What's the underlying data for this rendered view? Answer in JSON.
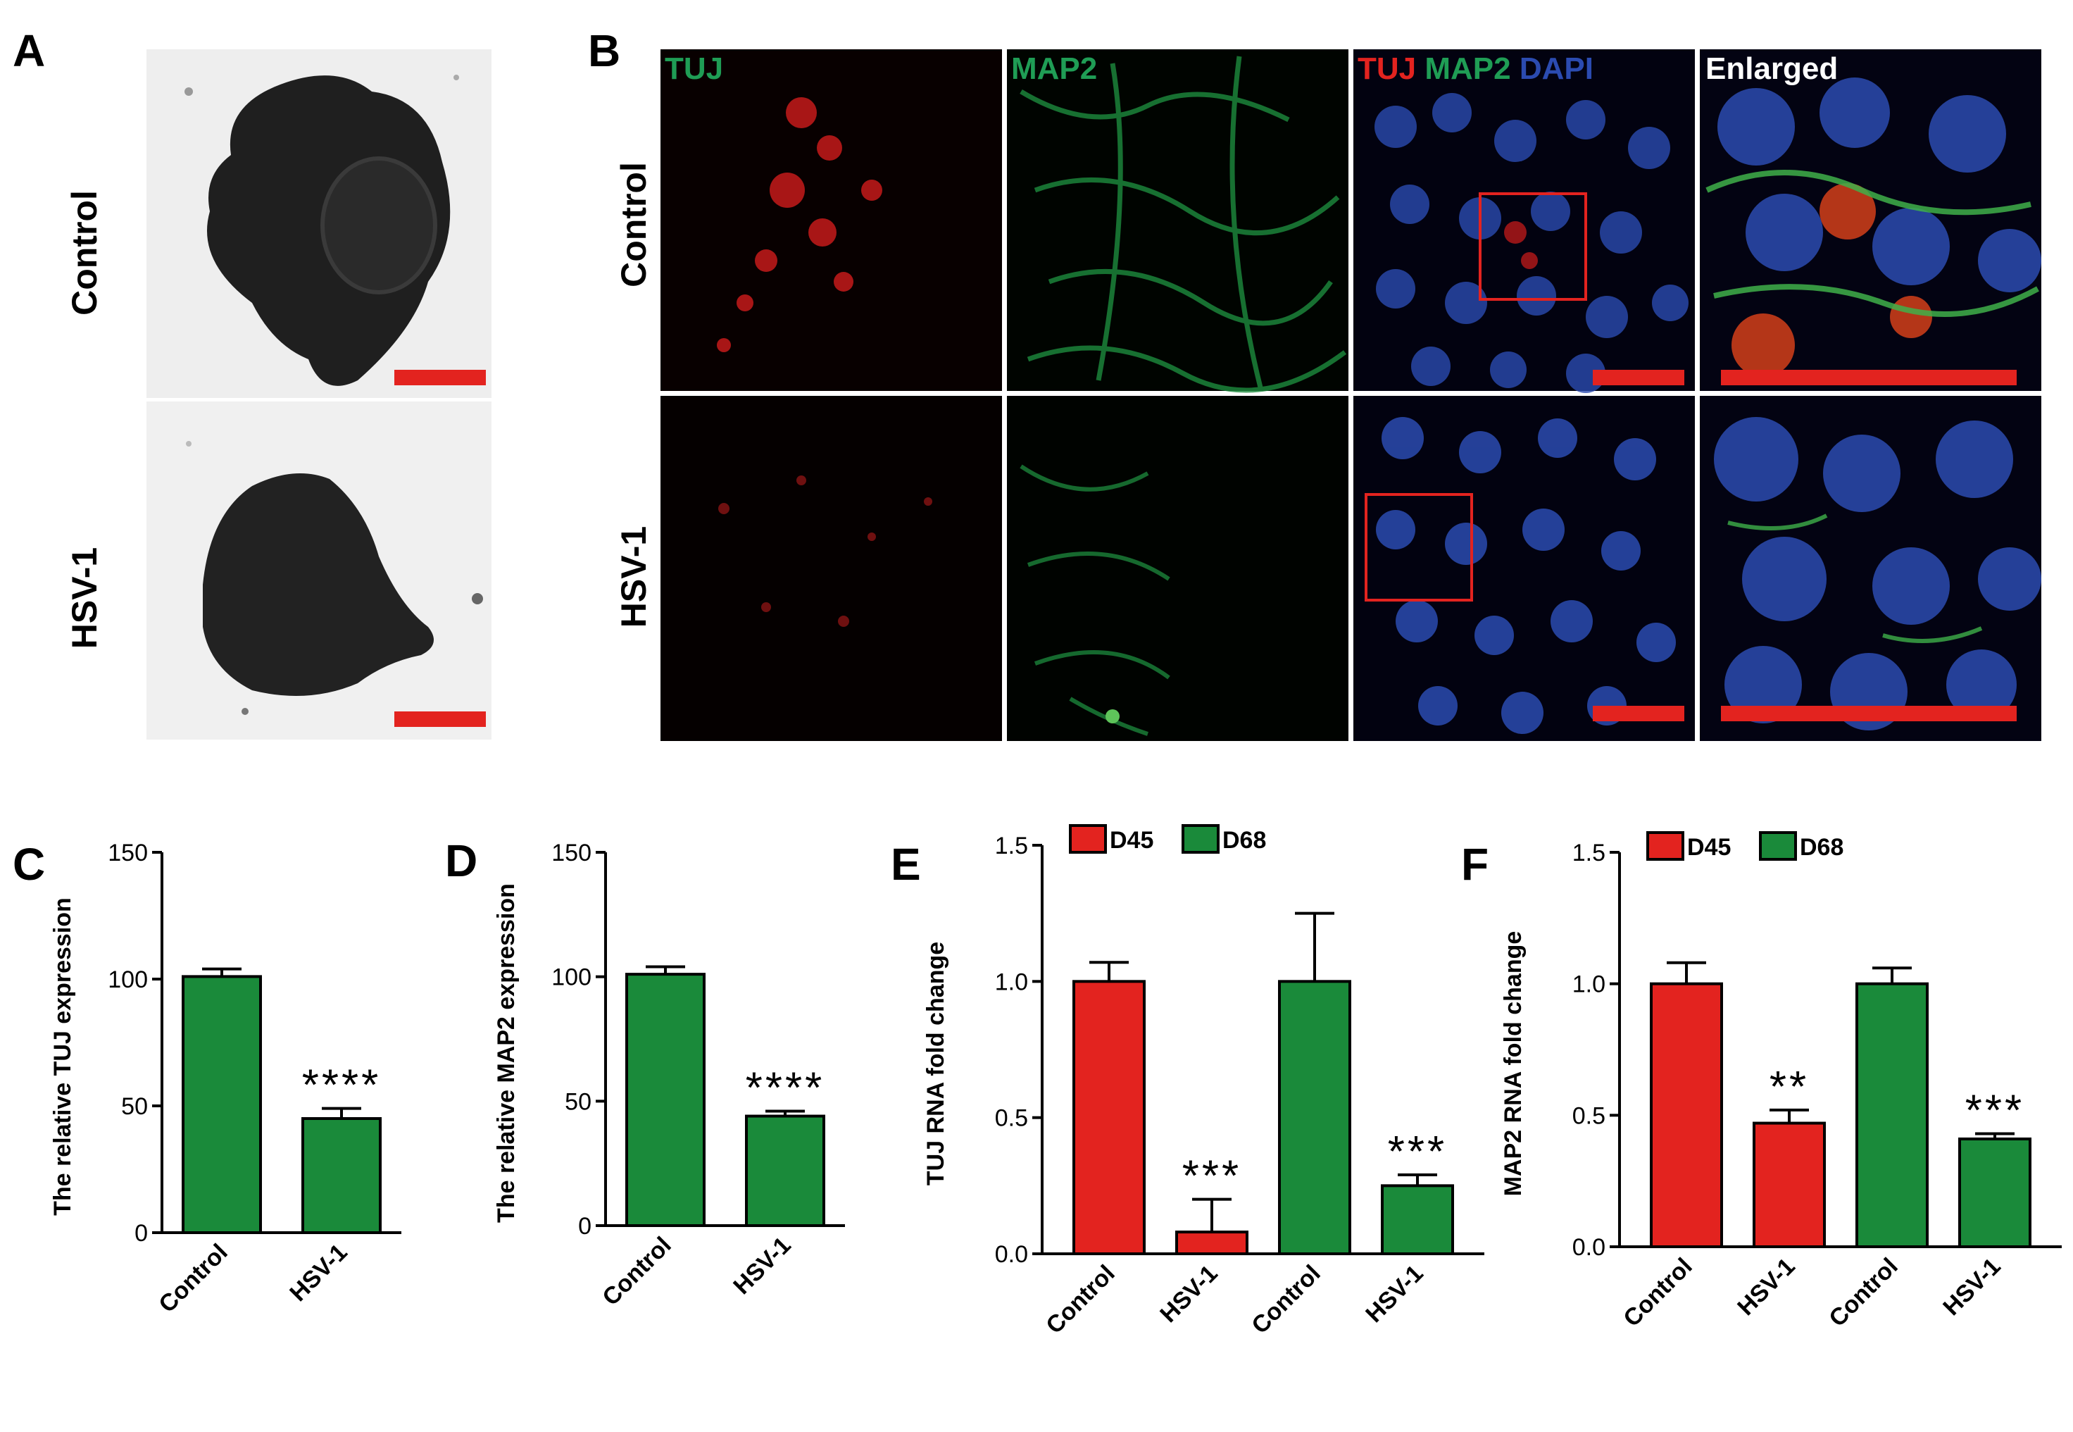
{
  "panels": {
    "A": {
      "letter": "A",
      "rows": [
        "Control",
        "HSV-1"
      ]
    },
    "B": {
      "letter": "B",
      "rows": [
        "Control",
        "HSV-1"
      ],
      "channels": {
        "tuj": "TUJ",
        "map2": "MAP2",
        "merge_tuj": "TUJ",
        "merge_map2": "MAP2",
        "merge_dapi": "DAPI",
        "enlarged": "Enlarged"
      },
      "colors": {
        "tuj": "#e3231f",
        "map2": "#1f9d55",
        "dapi": "#2b4bb0",
        "enlarged": "#ffffff",
        "scalebar": "#e3231f"
      }
    },
    "C": {
      "letter": "C"
    },
    "D": {
      "letter": "D"
    },
    "E": {
      "letter": "E"
    },
    "F": {
      "letter": "F"
    }
  },
  "chart_data": [
    {
      "panel": "C",
      "type": "bar",
      "ylabel": "The relative TUJ expression",
      "categories": [
        "Control",
        "HSV-1"
      ],
      "values": [
        101,
        45
      ],
      "errors": [
        3,
        4
      ],
      "yticks": [
        "0",
        "50",
        "100",
        "150"
      ],
      "ylim": [
        0,
        150
      ],
      "significance": [
        "",
        "****"
      ],
      "bar_color": "#1a8a3a"
    },
    {
      "panel": "D",
      "type": "bar",
      "ylabel": "The relative MAP2 expression",
      "categories": [
        "Control",
        "HSV-1"
      ],
      "values": [
        101,
        44
      ],
      "errors": [
        3,
        2
      ],
      "yticks": [
        "0",
        "50",
        "100",
        "150"
      ],
      "ylim": [
        0,
        150
      ],
      "significance": [
        "",
        "****"
      ],
      "bar_color": "#1a8a3a"
    },
    {
      "panel": "E",
      "type": "bar",
      "ylabel": "TUJ RNA fold change",
      "categories": [
        "Control",
        "HSV-1",
        "Control",
        "HSV-1"
      ],
      "values": [
        1.0,
        0.08,
        1.0,
        0.25
      ],
      "errors": [
        0.07,
        0.12,
        0.25,
        0.04
      ],
      "bar_groups": [
        "D45",
        "D45",
        "D68",
        "D68"
      ],
      "yticks": [
        "0.0",
        "0.5",
        "1.0",
        "1.5"
      ],
      "ylim": [
        0,
        1.5
      ],
      "significance": [
        "",
        "***",
        "",
        "***"
      ],
      "legend": [
        {
          "name": "D45",
          "color": "#e3231f"
        },
        {
          "name": "D68",
          "color": "#1a8a3a"
        }
      ]
    },
    {
      "panel": "F",
      "type": "bar",
      "ylabel": "MAP2 RNA fold change",
      "categories": [
        "Control",
        "HSV-1",
        "Control",
        "HSV-1"
      ],
      "values": [
        1.0,
        0.47,
        1.0,
        0.41
      ],
      "errors": [
        0.08,
        0.05,
        0.06,
        0.02
      ],
      "bar_groups": [
        "D45",
        "D45",
        "D68",
        "D68"
      ],
      "yticks": [
        "0.0",
        "0.5",
        "1.0",
        "1.5"
      ],
      "ylim": [
        0,
        1.5
      ],
      "significance": [
        "",
        "**",
        "",
        "***"
      ],
      "legend": [
        {
          "name": "D45",
          "color": "#e3231f"
        },
        {
          "name": "D68",
          "color": "#1a8a3a"
        }
      ]
    }
  ]
}
